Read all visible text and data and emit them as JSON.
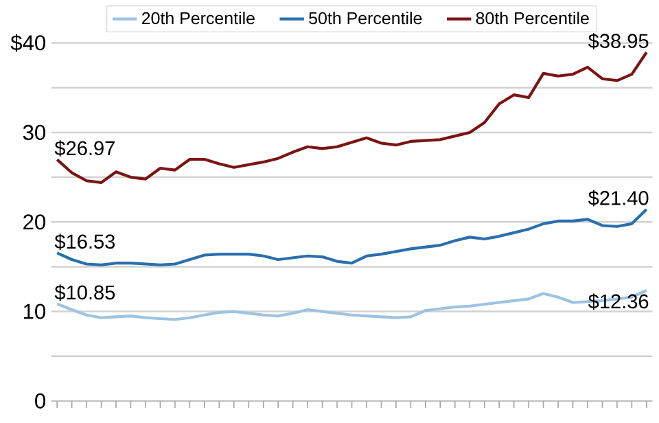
{
  "chart_data": {
    "type": "line",
    "categories": [
      null,
      null,
      null,
      null,
      null,
      null,
      null,
      null,
      null,
      null,
      null,
      null,
      null,
      null,
      null,
      null,
      null,
      null,
      null,
      null,
      null,
      null,
      null,
      null,
      null,
      null,
      null,
      null,
      null,
      null,
      null,
      null,
      null,
      null,
      null,
      null,
      null,
      null,
      null,
      null,
      null
    ],
    "series": [
      {
        "name": "20th Percentile",
        "color": "#9ec3e2",
        "values": [
          10.85,
          10.2,
          9.6,
          9.3,
          9.4,
          9.5,
          9.3,
          9.2,
          9.1,
          9.3,
          9.6,
          9.9,
          10.0,
          9.8,
          9.6,
          9.5,
          9.8,
          10.2,
          10.0,
          9.8,
          9.6,
          9.5,
          9.4,
          9.3,
          9.4,
          10.1,
          10.3,
          10.5,
          10.6,
          10.8,
          11.0,
          11.2,
          11.4,
          12.0,
          11.6,
          11.0,
          11.1,
          11.2,
          11.4,
          11.6,
          12.36
        ],
        "value_labels": [
          "$10.85",
          null,
          null,
          null,
          null,
          null,
          null,
          null,
          null,
          null,
          null,
          null,
          null,
          null,
          null,
          null,
          null,
          null,
          null,
          null,
          null,
          null,
          null,
          null,
          null,
          null,
          null,
          null,
          null,
          null,
          null,
          null,
          null,
          null,
          null,
          null,
          null,
          null,
          null,
          null,
          "$12.36"
        ]
      },
      {
        "name": "50th Percentile",
        "color": "#2a6fad",
        "values": [
          16.53,
          15.8,
          15.3,
          15.2,
          15.4,
          15.4,
          15.3,
          15.2,
          15.3,
          15.8,
          16.3,
          16.4,
          16.4,
          16.4,
          16.2,
          15.8,
          16.0,
          16.2,
          16.1,
          15.6,
          15.4,
          16.2,
          16.4,
          16.7,
          17.0,
          17.2,
          17.4,
          17.9,
          18.3,
          18.1,
          18.4,
          18.8,
          19.2,
          19.8,
          20.1,
          20.1,
          20.3,
          19.6,
          19.5,
          19.8,
          21.4
        ],
        "value_labels": [
          "$16.53",
          null,
          null,
          null,
          null,
          null,
          null,
          null,
          null,
          null,
          null,
          null,
          null,
          null,
          null,
          null,
          null,
          null,
          null,
          null,
          null,
          null,
          null,
          null,
          null,
          null,
          null,
          null,
          null,
          null,
          null,
          null,
          null,
          null,
          null,
          null,
          null,
          null,
          null,
          null,
          "$21.40"
        ]
      },
      {
        "name": "80th Percentile",
        "color": "#7b1414",
        "values": [
          26.97,
          25.5,
          24.6,
          24.4,
          25.6,
          25.0,
          24.8,
          26.0,
          25.8,
          27.0,
          27.0,
          26.5,
          26.1,
          26.4,
          26.7,
          27.1,
          27.8,
          28.4,
          28.2,
          28.4,
          28.9,
          29.4,
          28.8,
          28.6,
          29.0,
          29.1,
          29.2,
          29.6,
          30.0,
          31.1,
          33.2,
          34.2,
          33.9,
          36.6,
          36.3,
          36.5,
          37.3,
          36.0,
          35.8,
          36.5,
          38.95
        ],
        "value_labels": [
          "$26.97",
          null,
          null,
          null,
          null,
          null,
          null,
          null,
          null,
          null,
          null,
          null,
          null,
          null,
          null,
          null,
          null,
          null,
          null,
          null,
          null,
          null,
          null,
          null,
          null,
          null,
          null,
          null,
          null,
          null,
          null,
          null,
          null,
          null,
          null,
          null,
          null,
          null,
          null,
          null,
          "$38.95"
        ]
      }
    ],
    "ylim": [
      0,
      40
    ],
    "yticks": [
      0,
      {
        "value": 5,
        "label": null
      },
      10,
      {
        "value": 15,
        "label": null
      },
      20,
      {
        "value": 25,
        "label": null
      },
      30,
      {
        "value": 35,
        "label": null
      },
      {
        "value": 40,
        "label": "$40"
      }
    ],
    "grid": "y",
    "legend": "top",
    "tick_labels": "y"
  }
}
